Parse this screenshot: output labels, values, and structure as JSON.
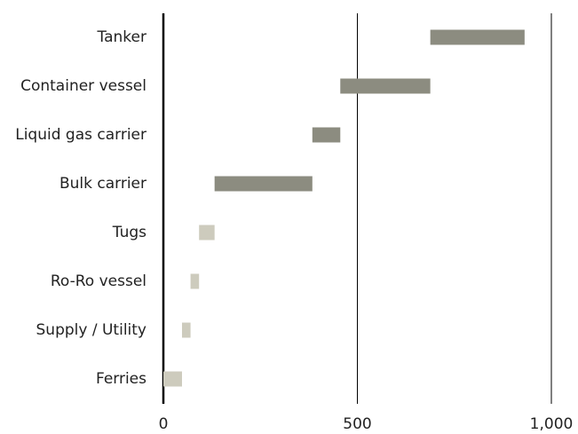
{
  "chart_data": {
    "type": "floating-bar",
    "categories": [
      "Tanker",
      "Container vessel",
      "Liquid gas carrier",
      "Bulk carrier",
      "Tugs",
      "Ro-Ro vessel",
      "Supply / Utility",
      "Ferries"
    ],
    "values": [
      243,
      232,
      72,
      252,
      40,
      22,
      22,
      48
    ],
    "colors": [
      "#8c8c80",
      "#8c8c80",
      "#8c8c80",
      "#8c8c80",
      "#cdcbbd",
      "#cdcbbd",
      "#cdcbbd",
      "#cdcbbd"
    ],
    "xlim": [
      0,
      1000
    ],
    "xticks": [
      0,
      500,
      {
        "value": 1000,
        "label": "1,000"
      }
    ],
    "grid": true
  }
}
